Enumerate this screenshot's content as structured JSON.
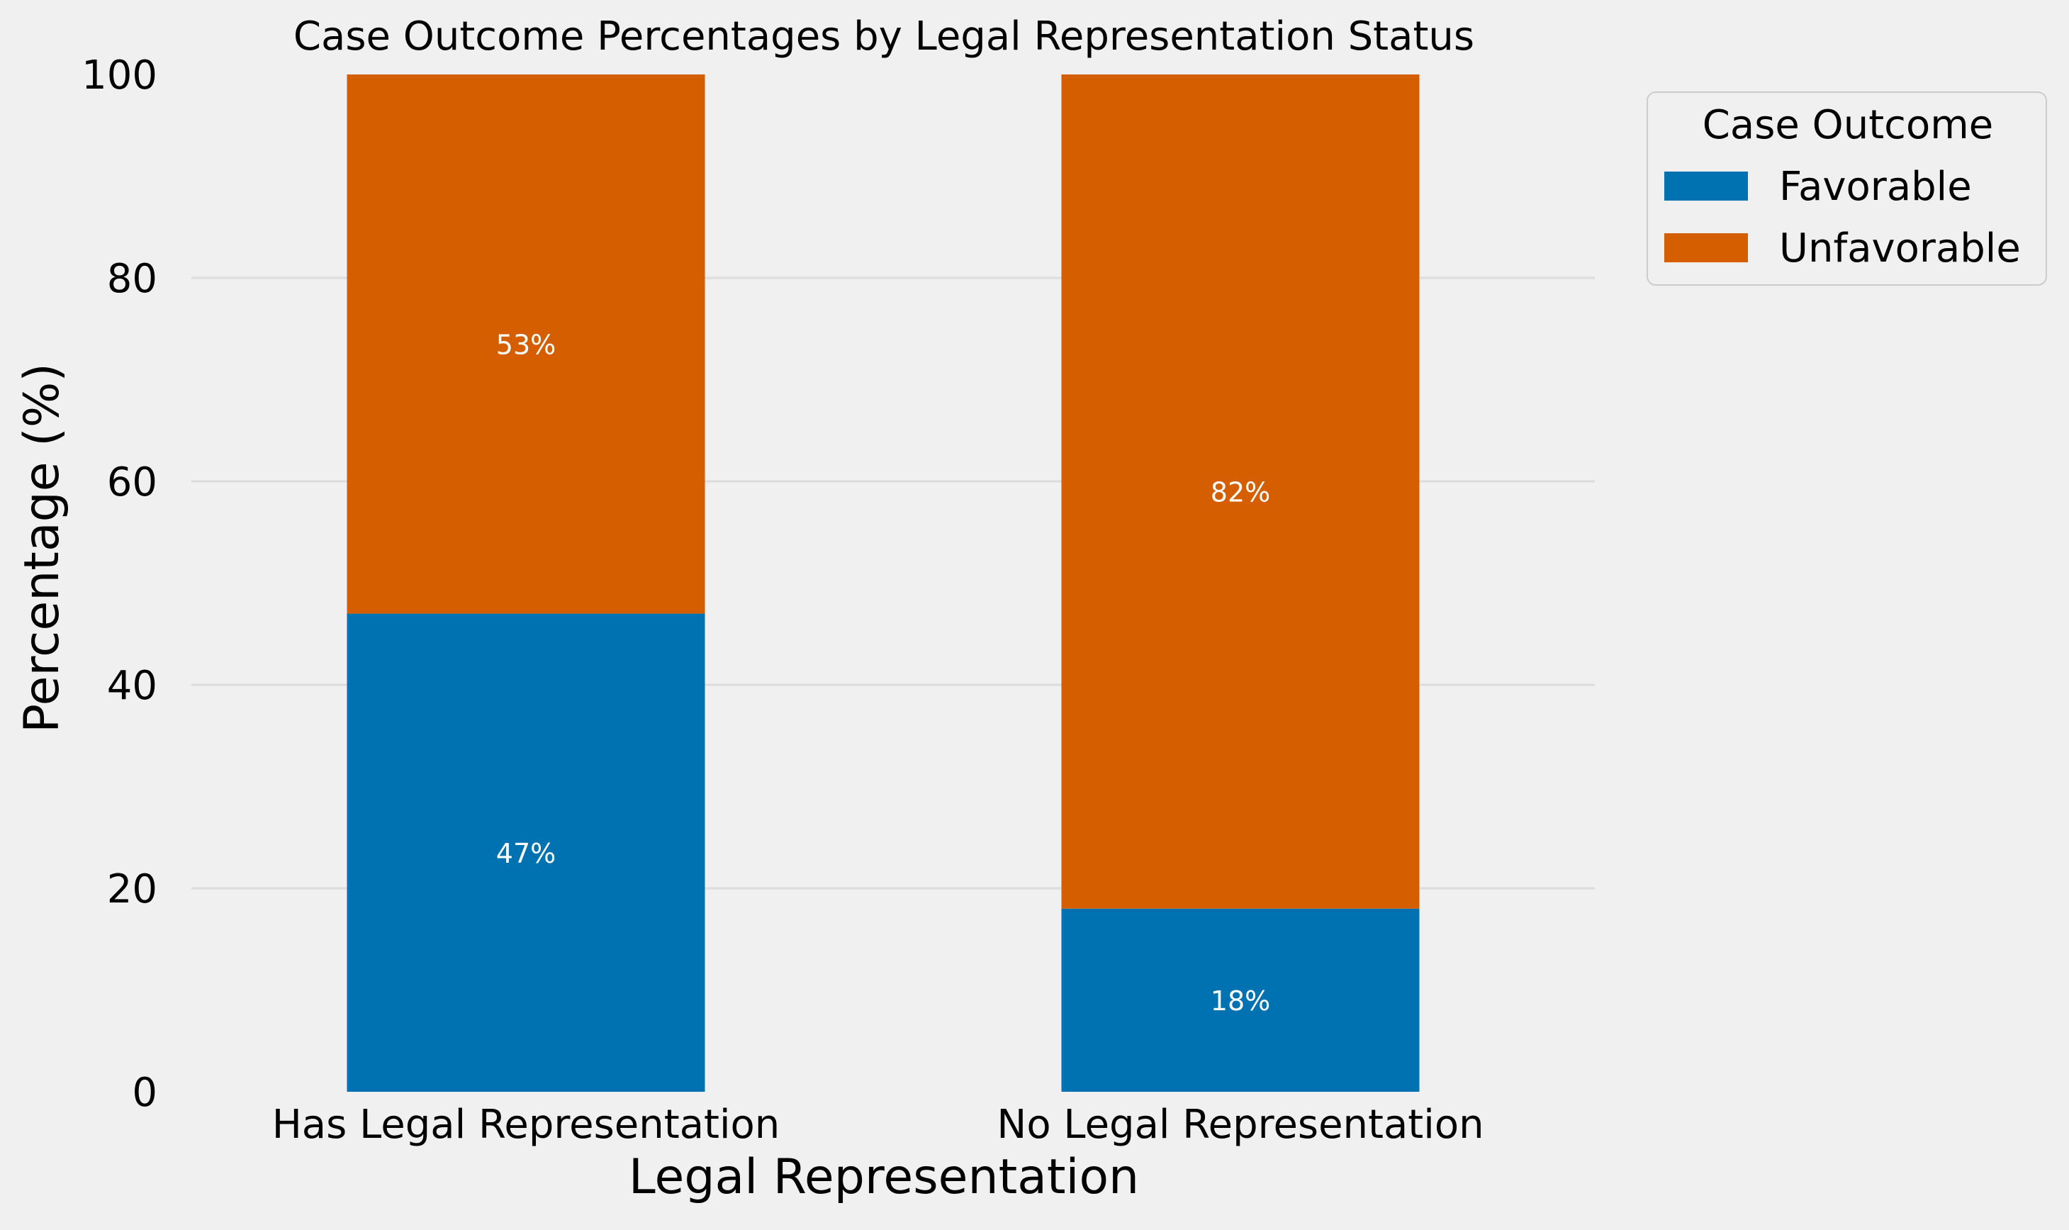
{
  "chart_data": {
    "type": "bar",
    "stacked": true,
    "title": "Case Outcome Percentages by Legal Representation Status",
    "xlabel": "Legal Representation",
    "ylabel": "Percentage (%)",
    "ylim": [
      0,
      100
    ],
    "yticks": [
      0,
      20,
      40,
      60,
      80,
      100
    ],
    "grid": true,
    "legend": {
      "title": "Case Outcome",
      "position": "upper-right-outside"
    },
    "categories": [
      "Has Legal Representation",
      "No Legal Representation"
    ],
    "series": [
      {
        "name": "Favorable",
        "color": "#0072b2",
        "values": [
          47,
          18
        ],
        "labels": [
          "47%",
          "18%"
        ]
      },
      {
        "name": "Unfavorable",
        "color": "#d55e00",
        "values": [
          53,
          82
        ],
        "labels": [
          "53%",
          "82%"
        ]
      }
    ]
  }
}
